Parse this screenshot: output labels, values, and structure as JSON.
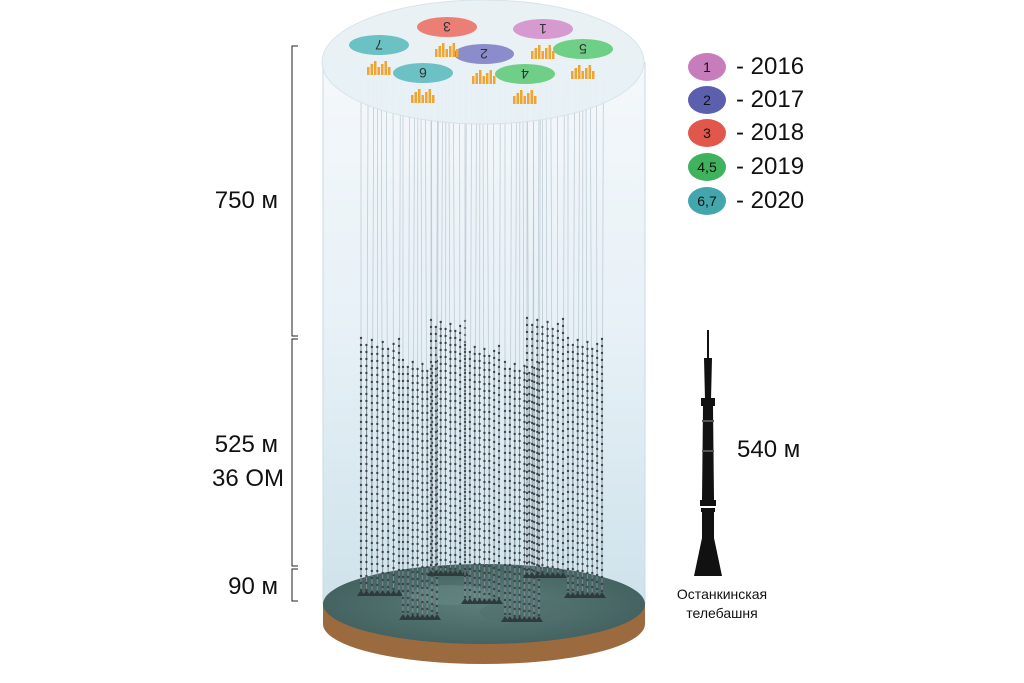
{
  "scale": {
    "top_height": "750 м",
    "mid_height": "525 м",
    "mid_modules": "36 ОМ",
    "bottom_height": "90 м"
  },
  "legend": [
    {
      "label": "1",
      "year": "- 2016",
      "color": "#c77dbb"
    },
    {
      "label": "2",
      "year": "- 2017",
      "color": "#5b5fae"
    },
    {
      "label": "3",
      "year": "- 2018",
      "color": "#e2574c"
    },
    {
      "label": "4,5",
      "year": "- 2019",
      "color": "#3fb25e"
    },
    {
      "label": "6,7",
      "year": "- 2020",
      "color": "#44a6ad"
    }
  ],
  "clusters": [
    {
      "label": "1",
      "color": "#d79ad0"
    },
    {
      "label": "2",
      "color": "#8a8ccc"
    },
    {
      "label": "3",
      "color": "#ec7f75"
    },
    {
      "label": "4",
      "color": "#6fcf86"
    },
    {
      "label": "5",
      "color": "#6fcf86"
    },
    {
      "label": "6",
      "color": "#6cc1c5"
    },
    {
      "label": "7",
      "color": "#6cc1c5"
    }
  ],
  "tower": {
    "height_label": "540 м",
    "caption_line1": "Останкинская",
    "caption_line2": "телебашня"
  }
}
